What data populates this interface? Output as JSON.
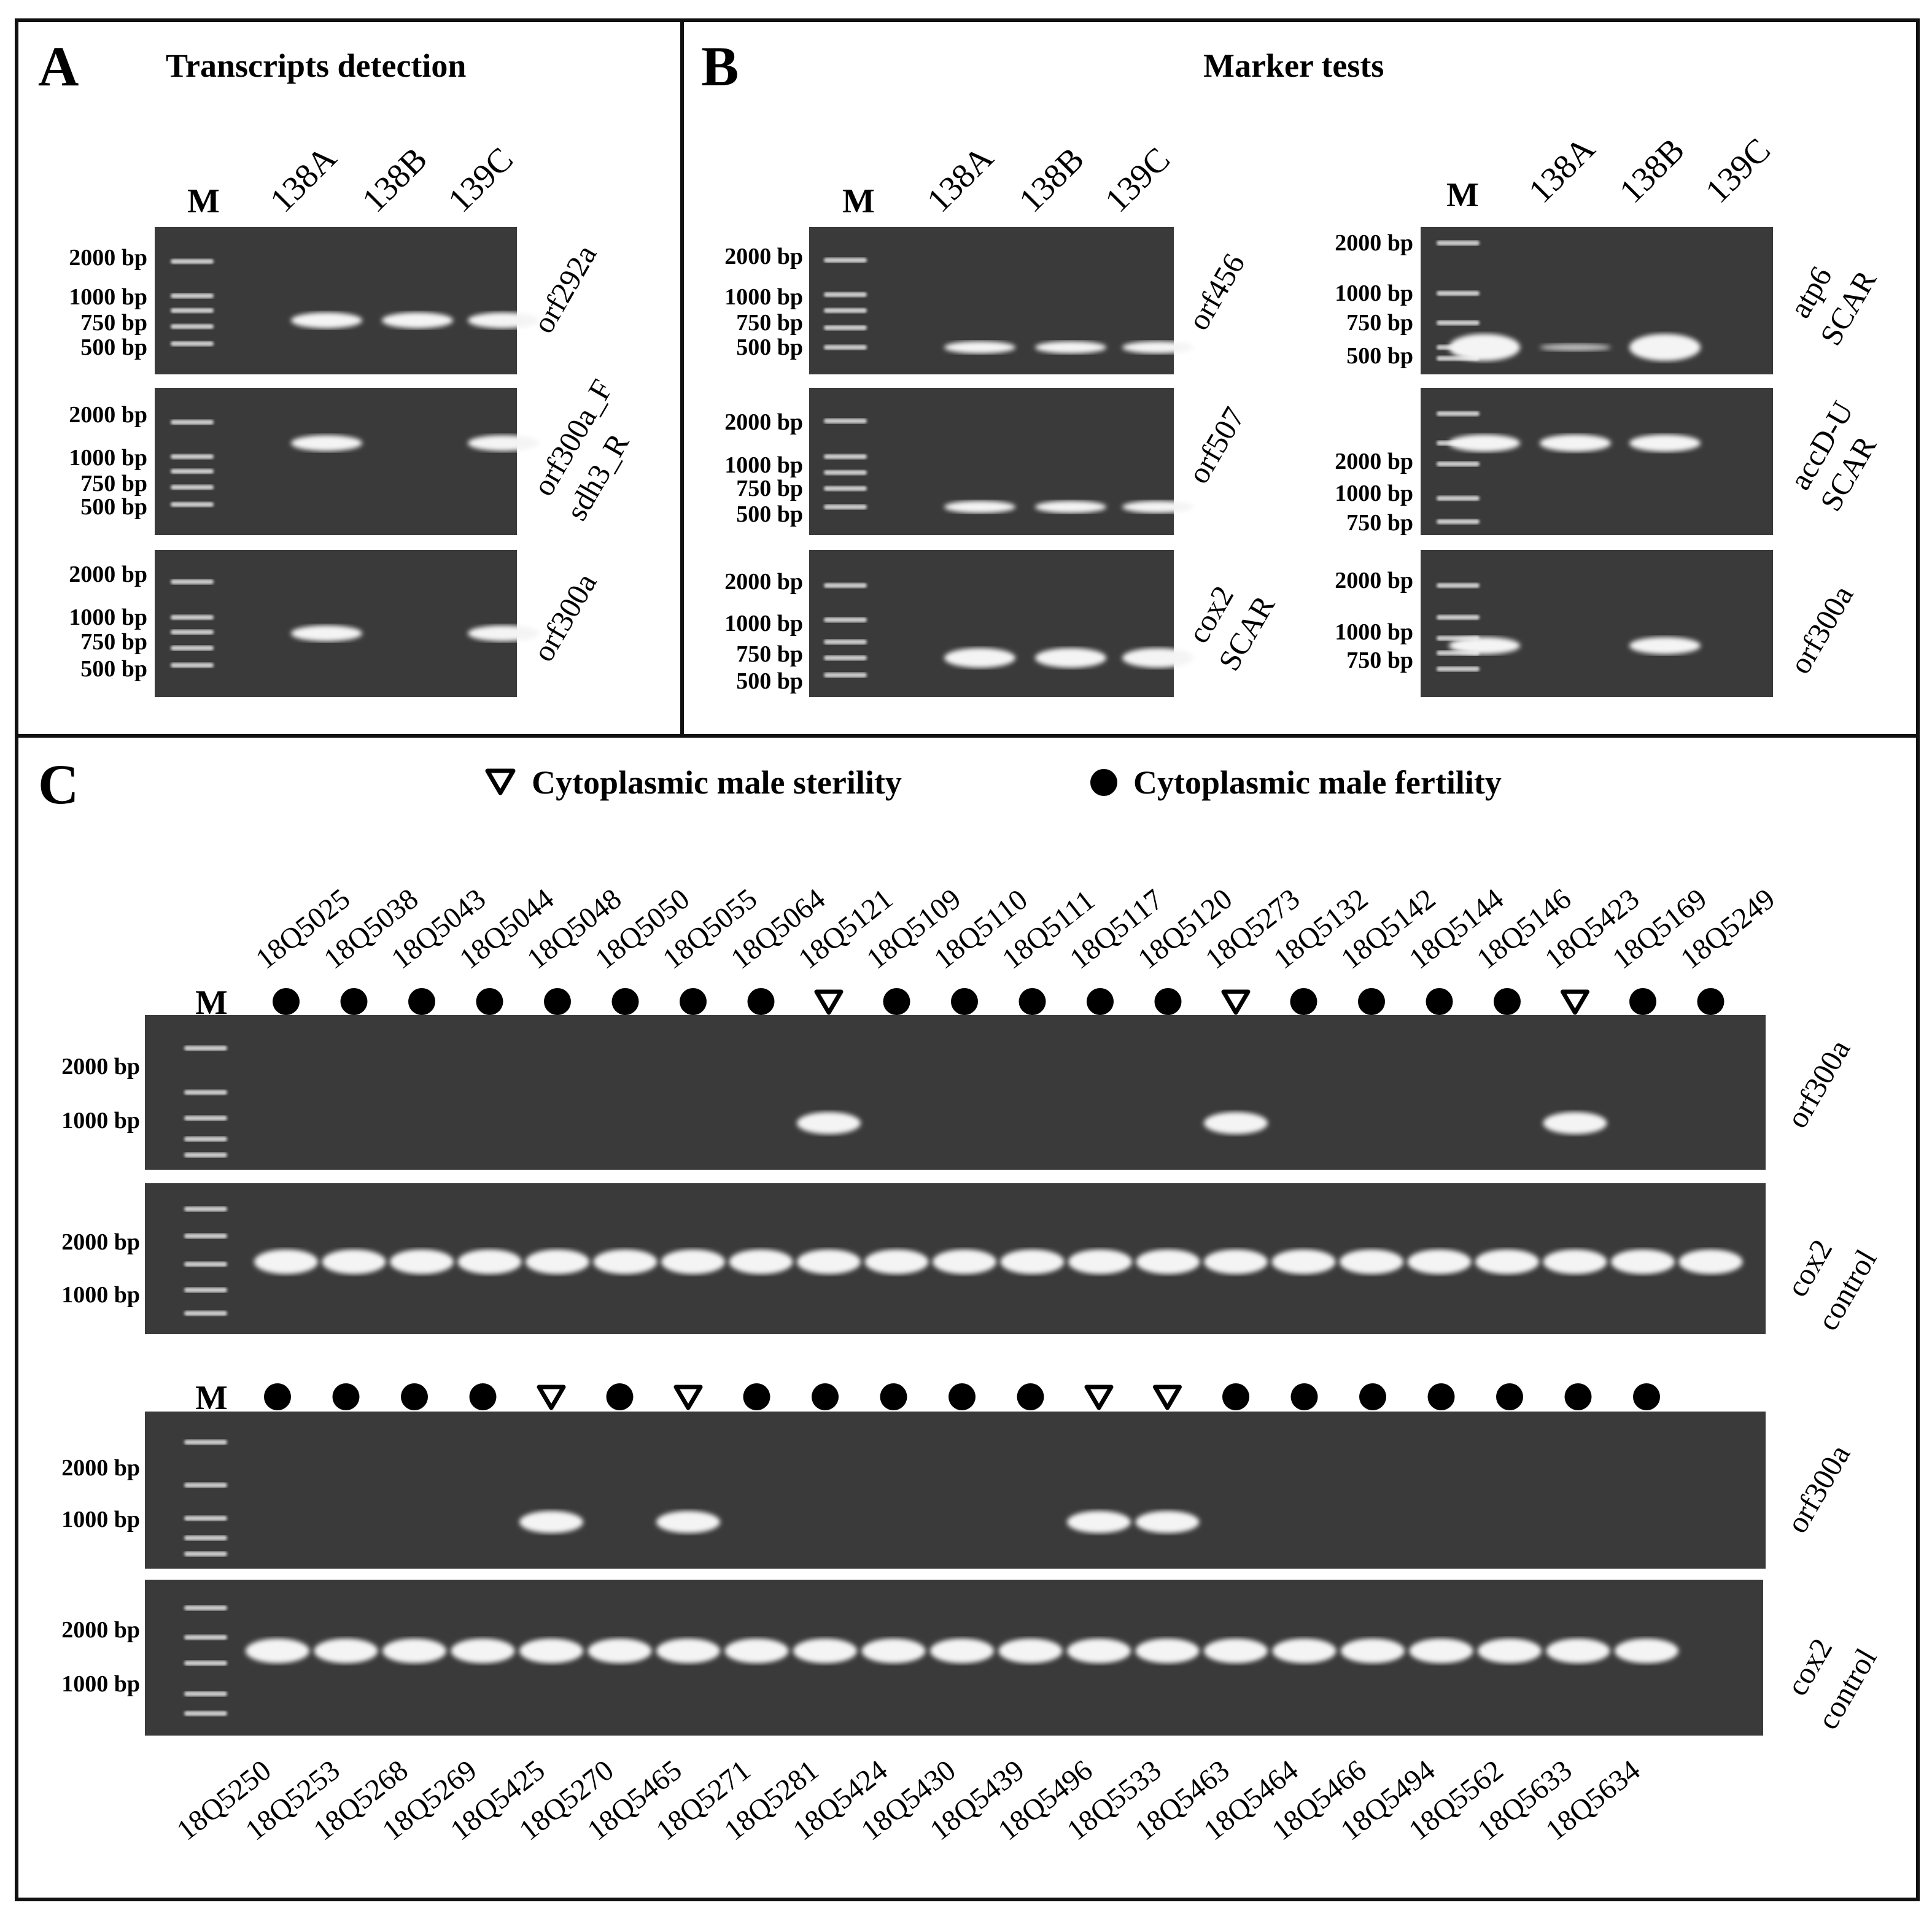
{
  "panel_a": {
    "letter": "A",
    "title": "Transcripts detection",
    "marker": "M",
    "lanes": [
      "138A",
      "138B",
      "139C"
    ],
    "gels": [
      {
        "primer": [
          "orf292a"
        ],
        "size_labels": [
          "2000 bp",
          "1000 bp",
          "750 bp",
          "500 bp"
        ],
        "bands": [
          true,
          true,
          true
        ]
      },
      {
        "primer": [
          "orf300a_F",
          "sdh3_R"
        ],
        "size_labels": [
          "2000 bp",
          "1000 bp",
          "750 bp",
          "500 bp"
        ],
        "bands": [
          true,
          false,
          true
        ]
      },
      {
        "primer": [
          "orf300a"
        ],
        "size_labels": [
          "2000 bp",
          "1000 bp",
          "750 bp",
          "500 bp"
        ],
        "bands": [
          true,
          false,
          true
        ]
      }
    ]
  },
  "panel_b": {
    "letter": "B",
    "title": "Marker tests",
    "marker": "M",
    "lanes": [
      "138A",
      "138B",
      "139C"
    ],
    "left_gels": [
      {
        "primer": [
          "orf456"
        ],
        "size_labels": [
          "2000 bp",
          "1000 bp",
          "750 bp",
          "500 bp"
        ],
        "bands": [
          true,
          true,
          true
        ]
      },
      {
        "primer": [
          "orf507"
        ],
        "size_labels": [
          "2000 bp",
          "1000 bp",
          "750 bp",
          "500 bp"
        ],
        "bands": [
          true,
          true,
          true
        ]
      },
      {
        "primer": [
          "cox2",
          "SCAR"
        ],
        "size_labels": [
          "2000 bp",
          "1000 bp",
          "750 bp",
          "500 bp"
        ],
        "bands": [
          true,
          true,
          true
        ]
      }
    ],
    "right_gels": [
      {
        "primer": [
          "atp6",
          "SCAR"
        ],
        "size_labels": [
          "2000 bp",
          "1000 bp",
          "750 bp",
          "500 bp"
        ],
        "bands": [
          true,
          true,
          true
        ]
      },
      {
        "primer": [
          "accD-U",
          "SCAR"
        ],
        "size_labels": [
          "2000 bp",
          "1000 bp",
          "750 bp"
        ],
        "bands": [
          true,
          true,
          true
        ]
      },
      {
        "primer": [
          "orf300a"
        ],
        "size_labels": [
          "2000 bp",
          "1000 bp",
          "750 bp"
        ],
        "bands": [
          true,
          false,
          true
        ]
      }
    ]
  },
  "panel_c": {
    "letter": "C",
    "legend": {
      "sterility": "Cytoplasmic male sterility",
      "fertility": "Cytoplasmic male fertility"
    },
    "marker": "M",
    "gel_labels": {
      "orf300a": "orf300a",
      "cox2_control": [
        "cox2",
        "control"
      ]
    },
    "size_labels": [
      "2000 bp",
      "1000 bp"
    ],
    "top_samples": [
      "18Q5025",
      "18Q5038",
      "18Q5043",
      "18Q5044",
      "18Q5048",
      "18Q5050",
      "18Q5055",
      "18Q5064",
      "18Q5121",
      "18Q5109",
      "18Q5110",
      "18Q5111",
      "18Q5117",
      "18Q5120",
      "18Q5273",
      "18Q5132",
      "18Q5142",
      "18Q5144",
      "18Q5146",
      "18Q5423",
      "18Q5169",
      "18Q5249"
    ],
    "top_types": [
      "F",
      "F",
      "F",
      "F",
      "F",
      "F",
      "F",
      "F",
      "S",
      "F",
      "F",
      "F",
      "F",
      "F",
      "S",
      "F",
      "F",
      "F",
      "F",
      "S",
      "F",
      "F"
    ],
    "bottom_samples": [
      "18Q5250",
      "18Q5253",
      "18Q5268",
      "18Q5269",
      "18Q5425",
      "18Q5270",
      "18Q5465",
      "18Q5271",
      "18Q5281",
      "18Q5424",
      "18Q5430",
      "18Q5439",
      "18Q5496",
      "18Q5533",
      "18Q5463",
      "18Q5464",
      "18Q5466",
      "18Q5494",
      "18Q5562",
      "18Q5633",
      "18Q5634"
    ],
    "bottom_types": [
      "F",
      "F",
      "F",
      "F",
      "S",
      "F",
      "S",
      "F",
      "F",
      "F",
      "F",
      "F",
      "S",
      "S",
      "F",
      "F",
      "F",
      "F",
      "F",
      "F",
      "F"
    ]
  }
}
